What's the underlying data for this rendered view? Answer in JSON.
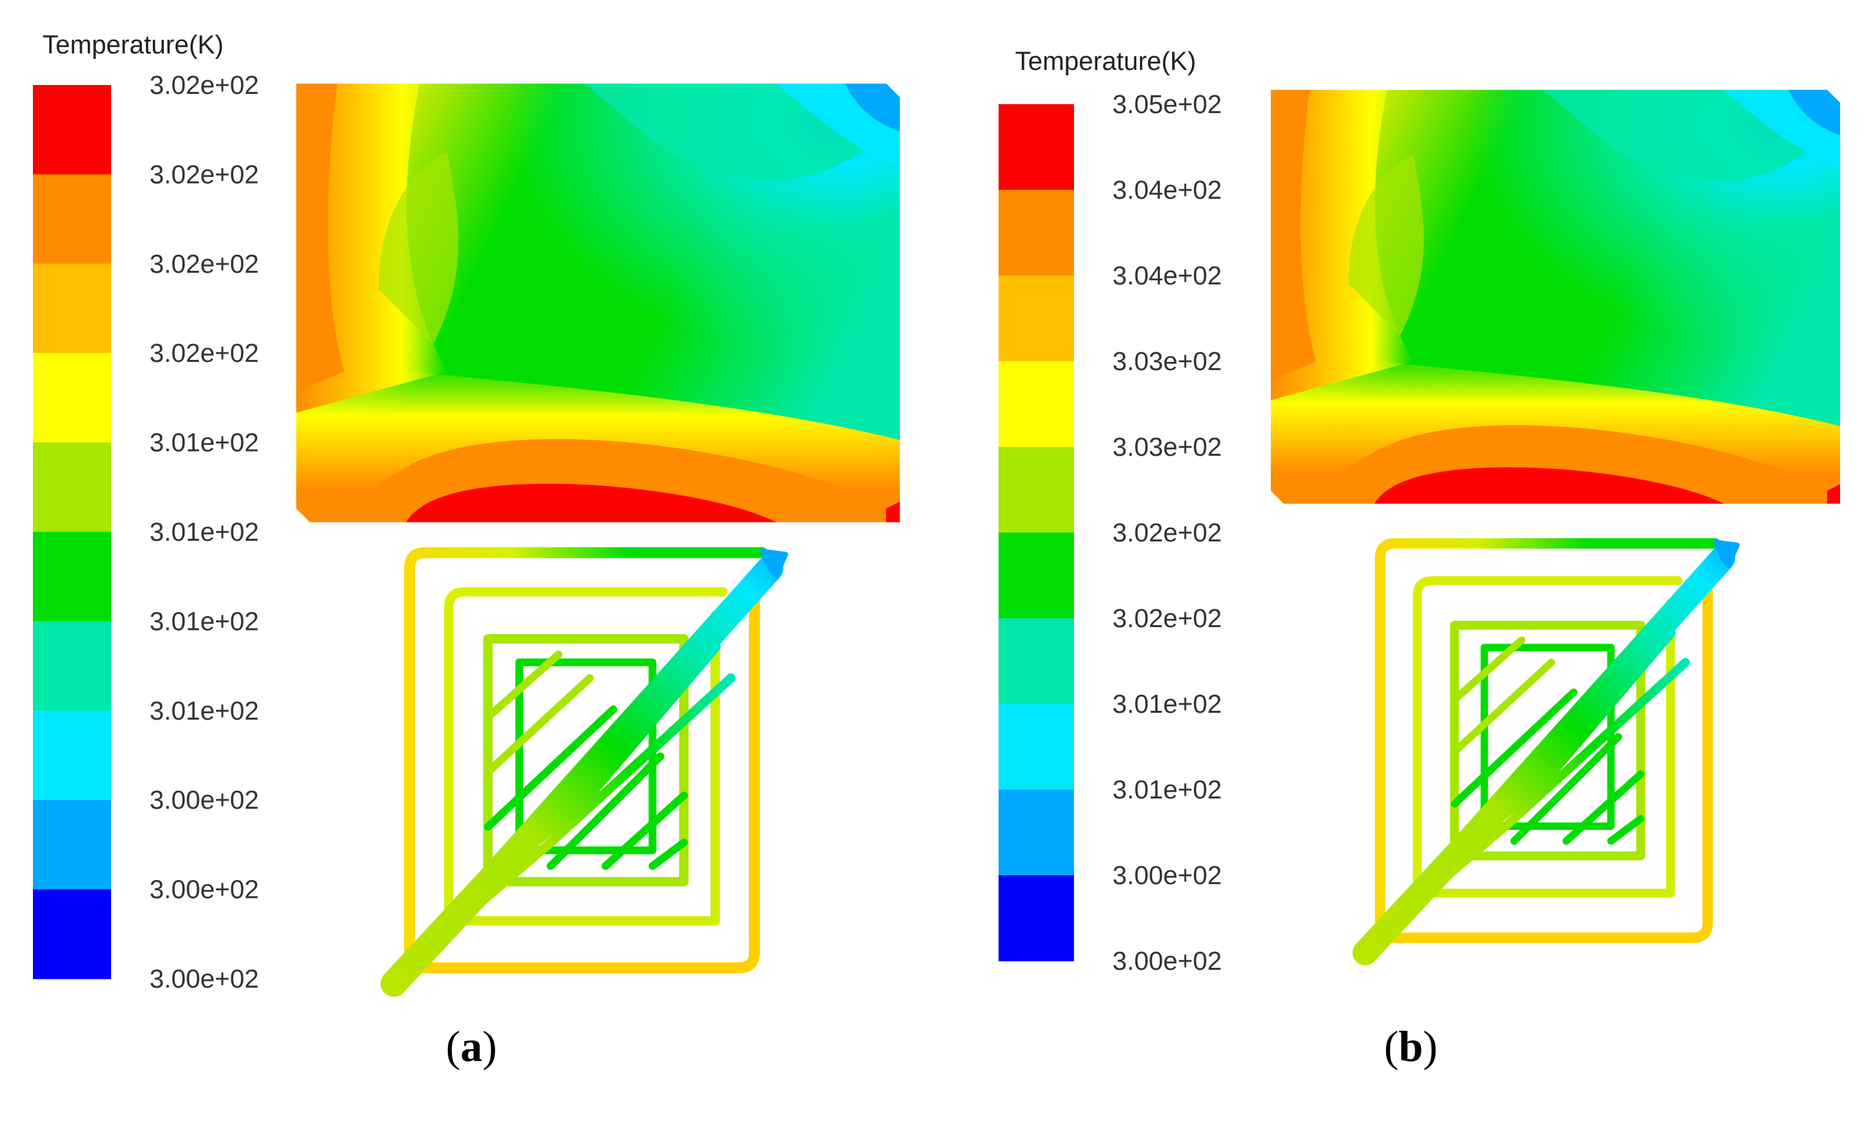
{
  "panels": [
    {
      "id": "a",
      "legend": {
        "title": "Temperature(K)",
        "ticks": [
          "3.02e+02",
          "3.02e+02",
          "3.02e+02",
          "3.02e+02",
          "3.01e+02",
          "3.01e+02",
          "3.01e+02",
          "3.01e+02",
          "3.00e+02",
          "3.00e+02",
          "3.00e+02"
        ],
        "colors": [
          "#ff0000",
          "#ff8c00",
          "#ffc000",
          "#ffff00",
          "#a6e600",
          "#00dd00",
          "#00e8a8",
          "#00e8ff",
          "#00a8ff",
          "#0000ff"
        ]
      },
      "caption": {
        "open": "(",
        "letter": "a",
        "close": ")"
      }
    },
    {
      "id": "b",
      "legend": {
        "title": "Temperature(K)",
        "ticks": [
          "3.05e+02",
          "3.04e+02",
          "3.04e+02",
          "3.03e+02",
          "3.03e+02",
          "3.02e+02",
          "3.02e+02",
          "3.01e+02",
          "3.01e+02",
          "3.00e+02",
          "3.00e+02"
        ],
        "colors": [
          "#ff0000",
          "#ff8c00",
          "#ffc000",
          "#ffff00",
          "#a6e600",
          "#00dd00",
          "#00e8a8",
          "#00e8ff",
          "#00a8ff",
          "#0000ff"
        ]
      },
      "caption": {
        "open": "(",
        "letter": "b",
        "close": ")"
      }
    }
  ]
}
